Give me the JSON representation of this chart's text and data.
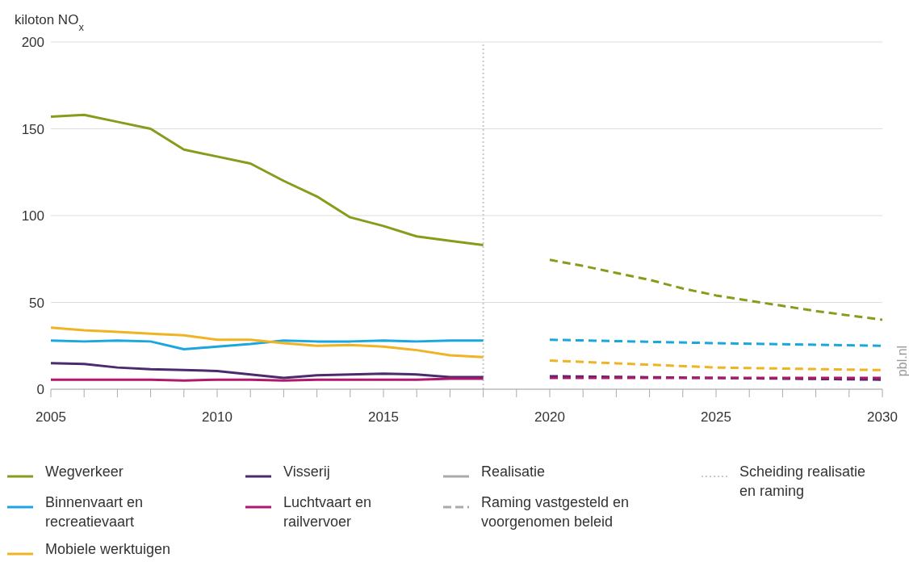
{
  "chart_data": {
    "type": "line",
    "ylabel": "kiloton NO$_{x}$",
    "xlim": [
      2005,
      2030
    ],
    "xticks": [
      2005,
      {
        "value": 2006,
        "label": null
      },
      {
        "value": 2007,
        "label": null
      },
      {
        "value": 2008,
        "label": null
      },
      {
        "value": 2009,
        "label": null
      },
      2010,
      {
        "value": 2011,
        "label": null
      },
      {
        "value": 2012,
        "label": null
      },
      {
        "value": 2013,
        "label": null
      },
      {
        "value": 2014,
        "label": null
      },
      2015,
      {
        "value": 2016,
        "label": null
      },
      {
        "value": 2017,
        "label": null
      },
      {
        "value": 2018,
        "label": null
      },
      {
        "value": 2019,
        "label": null
      },
      2020,
      {
        "value": 2021,
        "label": null
      },
      {
        "value": 2022,
        "label": null
      },
      {
        "value": 2023,
        "label": null
      },
      {
        "value": 2024,
        "label": null
      },
      2025,
      {
        "value": 2026,
        "label": null
      },
      {
        "value": 2027,
        "label": null
      },
      {
        "value": 2028,
        "label": null
      },
      {
        "value": 2029,
        "label": null
      },
      2030
    ],
    "ylim": [
      0,
      200
    ],
    "yticks": [
      0,
      50,
      100,
      150,
      200
    ],
    "grid": "y",
    "legend": "bottom",
    "marker": "none",
    "series": [
      {
        "name": "Wegverkeer",
        "color": "#8a9a1b",
        "line_style": "solid",
        "x": [
          2005,
          2006,
          2007,
          2008,
          2009,
          2010,
          2011,
          2012,
          2013,
          2014,
          2015,
          2016,
          2017,
          2018
        ],
        "values": [
          157,
          158,
          154,
          150,
          138,
          134,
          130,
          120,
          111,
          99,
          94,
          88,
          85.5,
          83
        ]
      },
      {
        "name": "Binnenvaart en recreatievaart",
        "color": "#1aa7e0",
        "line_style": "solid",
        "x": [
          2005,
          2006,
          2007,
          2008,
          2009,
          2010,
          2011,
          2012,
          2013,
          2014,
          2015,
          2016,
          2017,
          2018
        ],
        "values": [
          28,
          27.5,
          28,
          27.5,
          23,
          24.5,
          26,
          28,
          27.5,
          27.5,
          28,
          27.5,
          28,
          28
        ]
      },
      {
        "name": "Mobiele werktuigen",
        "color": "#f0b323",
        "line_style": "solid",
        "x": [
          2005,
          2006,
          2007,
          2008,
          2009,
          2010,
          2011,
          2012,
          2013,
          2014,
          2015,
          2016,
          2017,
          2018
        ],
        "values": [
          35.5,
          34,
          33,
          32,
          31,
          28.5,
          28.5,
          26.5,
          25,
          25.5,
          24.5,
          22.5,
          19.5,
          18.5
        ]
      },
      {
        "name": "Visserij",
        "color": "#4b2a6e",
        "line_style": "solid",
        "x": [
          2005,
          2006,
          2007,
          2008,
          2009,
          2010,
          2011,
          2012,
          2013,
          2014,
          2015,
          2016,
          2017,
          2018
        ],
        "values": [
          15,
          14.5,
          12.5,
          11.5,
          11,
          10.5,
          8.5,
          6.5,
          8,
          8.5,
          9,
          8.5,
          7,
          7
        ]
      },
      {
        "name": "Luchtvaart en railvervoer",
        "color": "#b0186e",
        "line_style": "solid",
        "x": [
          2005,
          2006,
          2007,
          2008,
          2009,
          2010,
          2011,
          2012,
          2013,
          2014,
          2015,
          2016,
          2017,
          2018
        ],
        "values": [
          5.5,
          5.5,
          5.5,
          5.5,
          5,
          5.5,
          5.5,
          5,
          5.5,
          5.5,
          5.5,
          5.5,
          6,
          6
        ]
      },
      {
        "color": "#8a9a1b",
        "line_style": "dashed",
        "x": [
          2020,
          2021,
          2022,
          2023,
          2024,
          2025,
          2026,
          2027,
          2028,
          2029,
          2030
        ],
        "values": [
          74.5,
          71,
          67,
          63,
          58,
          54,
          51,
          48,
          45,
          42.5,
          40
        ]
      },
      {
        "color": "#1aa7e0",
        "line_style": "dashed",
        "x": [
          2020,
          2025,
          2030
        ],
        "values": [
          28.5,
          26.5,
          25
        ]
      },
      {
        "color": "#f0b323",
        "line_style": "dashed",
        "x": [
          2020,
          2025,
          2030
        ],
        "values": [
          16.5,
          12.5,
          11
        ]
      },
      {
        "color": "#4b2a6e",
        "line_style": "dashed",
        "x": [
          2020,
          2025,
          2030
        ],
        "values": [
          7.5,
          6.5,
          5.5
        ]
      },
      {
        "color": "#b0186e",
        "line_style": "dashed",
        "x": [
          2020,
          2025,
          2030
        ],
        "values": [
          6.5,
          6.5,
          6.5
        ]
      }
    ],
    "ref_lines": [
      {
        "axis": "x",
        "value": 2018,
        "label": "Scheiding realisatie en raming",
        "color": "#c8c8c8",
        "line_style": "dotted"
      }
    ],
    "annotations": [
      "pbl.nl",
      "Realisatie",
      "Raming vastgesteld en voorgenomen beleid"
    ]
  }
}
